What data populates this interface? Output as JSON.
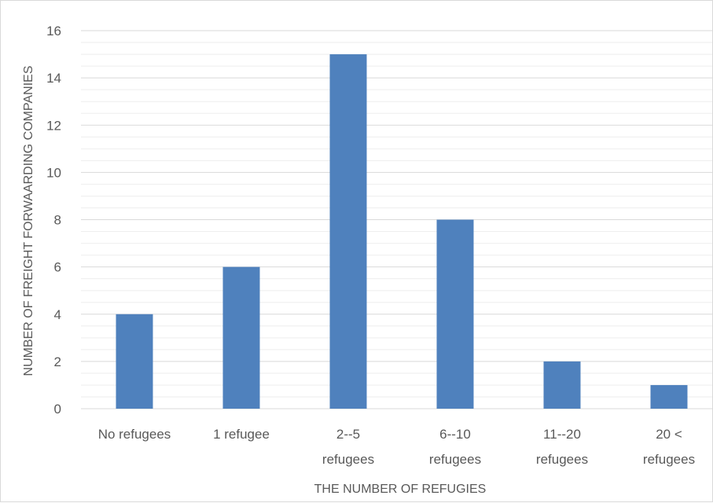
{
  "chart_data": {
    "type": "bar",
    "categories": [
      [
        "No refugees"
      ],
      [
        "1 refugee"
      ],
      [
        "2--5",
        "refugees"
      ],
      [
        "6--10",
        "refugees"
      ],
      [
        "11--20",
        "refugees"
      ],
      [
        "20 <",
        "refugees"
      ]
    ],
    "values": [
      4,
      6,
      15,
      8,
      2,
      1
    ],
    "title": "",
    "xlabel": "THE NUMBER OF REFUGIES",
    "ylabel": "NUMBER OF FREIGHT FORWAARDING COMPANIES",
    "ylim": [
      0,
      16
    ],
    "yticks": [
      0,
      2,
      4,
      6,
      8,
      10,
      12,
      14,
      16
    ],
    "grid": true,
    "minor_grid": true,
    "legend": "none",
    "bar_color": "#4f81bd",
    "grid_color": "#d9d9d9",
    "minor_grid_color": "#eeeeee"
  }
}
